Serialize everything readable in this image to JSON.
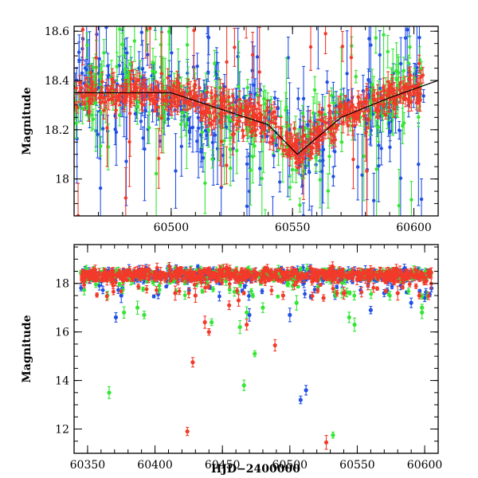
{
  "chart_data": [
    {
      "type": "scatter",
      "panel": "top",
      "title": "",
      "xlabel": "",
      "ylabel": "Magnitude",
      "xlim": [
        60460,
        60610
      ],
      "ylim": [
        18.62,
        17.85
      ],
      "y_inverted": true,
      "xticks": [
        60500,
        60550,
        60600
      ],
      "yticks": [
        18,
        18.2,
        18.4,
        18.6
      ],
      "xtick_labels": [
        "60500",
        "60550",
        "60600"
      ],
      "ytick_labels": [
        "18",
        "18.2",
        "18.4",
        "18.6"
      ],
      "trend_line": {
        "points": [
          [
            60460,
            18.35
          ],
          [
            60500,
            18.35
          ],
          [
            60540,
            18.22
          ],
          [
            60552,
            18.1
          ],
          [
            60570,
            18.25
          ],
          [
            60590,
            18.33
          ],
          [
            60610,
            18.4
          ]
        ],
        "color": "#000000"
      },
      "series": [
        {
          "color": "#2250e6",
          "seed": 11,
          "n": 330,
          "scatter": 0.09,
          "err": 0.045,
          "outlier_frac": 0.28
        },
        {
          "color": "#33e633",
          "seed": 23,
          "n": 250,
          "scatter": 0.08,
          "err": 0.05,
          "outlier_frac": 0.25
        },
        {
          "color": "#f23a2a",
          "seed": 37,
          "n": 520,
          "scatter": 0.035,
          "err": 0.03,
          "outlier_frac": 0.07
        }
      ],
      "grid": false
    },
    {
      "type": "scatter",
      "panel": "bottom",
      "title": "",
      "xlabel": "HJD−2400000",
      "ylabel": "Magnitude",
      "xlim": [
        60340,
        60610
      ],
      "ylim": [
        19.6,
        11.0
      ],
      "y_inverted": true,
      "xticks": [
        60350,
        60400,
        60450,
        60500,
        60550,
        60600
      ],
      "yticks": [
        12,
        14,
        16,
        18
      ],
      "xtick_labels": [
        "60350",
        "60400",
        "60450",
        "60500",
        "60550",
        "60600"
      ],
      "ytick_labels": [
        "12",
        "14",
        "16",
        "18"
      ],
      "series": [
        {
          "color": "#2250e6",
          "seed": 53,
          "n": 420,
          "outliers": [
            [
              60508,
              13.2
            ],
            [
              60512,
              13.6
            ],
            [
              60371,
              16.6
            ],
            [
              60375,
              17.5
            ],
            [
              60470,
              16.7
            ],
            [
              60500,
              16.7
            ],
            [
              60560,
              16.9
            ],
            [
              60590,
              17.2
            ],
            [
              60600,
              17.4
            ],
            [
              60605,
              17.8
            ],
            [
              60570,
              17.6
            ]
          ]
        },
        {
          "color": "#33e633",
          "seed": 67,
          "n": 320,
          "outliers": [
            [
              60532,
              11.75
            ],
            [
              60366,
              13.5
            ],
            [
              60466,
              13.8
            ],
            [
              60474,
              15.1
            ],
            [
              60463,
              16.2
            ],
            [
              60442,
              16.4
            ],
            [
              60548,
              16.3
            ],
            [
              60544,
              16.6
            ],
            [
              60598,
              16.8
            ],
            [
              60392,
              16.7
            ],
            [
              60377,
              16.8
            ],
            [
              60387,
              17.0
            ],
            [
              60480,
              17.0
            ],
            [
              60468,
              16.8
            ],
            [
              60505,
              17.2
            ],
            [
              60598,
              17.0
            ]
          ]
        },
        {
          "color": "#f23a2a",
          "seed": 79,
          "n": 620,
          "outliers": [
            [
              60527,
              11.45
            ],
            [
              60424,
              11.9
            ],
            [
              60428,
              14.75
            ],
            [
              60440,
              16.0
            ],
            [
              60437,
              16.4
            ],
            [
              60468,
              16.3
            ],
            [
              60489,
              15.45
            ],
            [
              60455,
              17.1
            ],
            [
              60462,
              17.3
            ],
            [
              60495,
              17.5
            ],
            [
              60525,
              17.4
            ],
            [
              60540,
              17.6
            ],
            [
              60580,
              17.6
            ],
            [
              60596,
              17.5
            ],
            [
              60415,
              17.6
            ],
            [
              60430,
              17.5
            ]
          ]
        }
      ],
      "grid": false
    }
  ]
}
